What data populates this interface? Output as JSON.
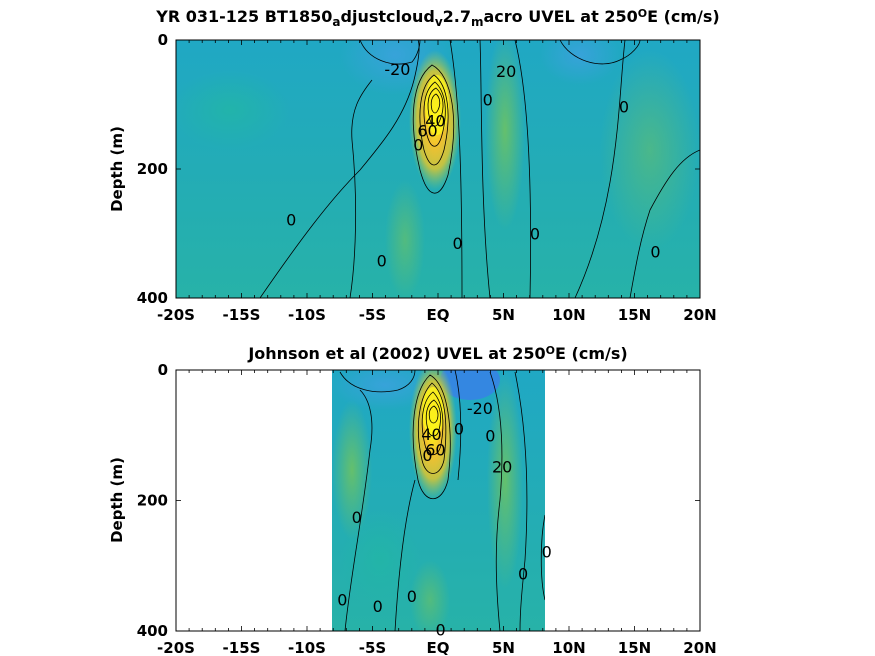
{
  "chart_data": [
    {
      "type": "heatmap",
      "title_parts": [
        "YR 031-125 BT1850",
        "a",
        "djustcloud",
        "v",
        "2.7",
        "m",
        "acro UVEL at 250",
        "O",
        "E (cm/s)"
      ],
      "ylabel": "Depth (m)",
      "xlim": [
        -20,
        20
      ],
      "ylim": [
        400,
        0
      ],
      "x_ticks": [
        -20,
        -15,
        -10,
        -5,
        0,
        5,
        10,
        15,
        20
      ],
      "x_tick_labels": [
        "-20S",
        "-15S",
        "-10S",
        "-5S",
        "EQ",
        "5N",
        "10N",
        "15N",
        "20N"
      ],
      "y_ticks": [
        0,
        200,
        400
      ],
      "y_tick_labels": [
        "0",
        "200",
        "400"
      ],
      "data_extent": [
        -20,
        20
      ],
      "contour_labels": [
        {
          "text": "-20",
          "x": -3.1,
          "y": 45
        },
        {
          "text": "20",
          "x": 5.2,
          "y": 48
        },
        {
          "text": "0",
          "x": 3.8,
          "y": 92
        },
        {
          "text": "0",
          "x": 14.2,
          "y": 103
        },
        {
          "text": "40",
          "x": -0.2,
          "y": 125
        },
        {
          "text": "60",
          "x": -0.8,
          "y": 140
        },
        {
          "text": "0",
          "x": -1.5,
          "y": 162
        },
        {
          "text": "0",
          "x": -11.2,
          "y": 278
        },
        {
          "text": "0",
          "x": 1.5,
          "y": 315
        },
        {
          "text": "0",
          "x": 7.4,
          "y": 300
        },
        {
          "text": "0",
          "x": -4.3,
          "y": 342
        },
        {
          "text": "0",
          "x": 16.6,
          "y": 328
        }
      ]
    },
    {
      "type": "heatmap",
      "title_parts": [
        "Johnson et al (2002) UVEL at 250",
        "O",
        "E (cm/s)"
      ],
      "ylabel": "Depth (m)",
      "xlim": [
        -20,
        20
      ],
      "ylim": [
        400,
        0
      ],
      "x_ticks": [
        -20,
        -15,
        -10,
        -5,
        0,
        5,
        10,
        15,
        20
      ],
      "x_tick_labels": [
        "-20S",
        "-15S",
        "-10S",
        "-5S",
        "EQ",
        "5N",
        "10N",
        "15N",
        "20N"
      ],
      "y_ticks": [
        0,
        200,
        400
      ],
      "y_tick_labels": [
        "0",
        "200",
        "400"
      ],
      "data_extent": [
        -8,
        8.2
      ],
      "contour_labels": [
        {
          "text": "-20",
          "x": 3.2,
          "y": 58
        },
        {
          "text": "0",
          "x": 1.6,
          "y": 90
        },
        {
          "text": "0",
          "x": 4.0,
          "y": 100
        },
        {
          "text": "20",
          "x": 4.9,
          "y": 148
        },
        {
          "text": "40",
          "x": -0.5,
          "y": 98
        },
        {
          "text": "60",
          "x": -0.2,
          "y": 122
        },
        {
          "text": "0",
          "x": -0.8,
          "y": 130
        },
        {
          "text": "0",
          "x": -6.2,
          "y": 225
        },
        {
          "text": "0",
          "x": 8.3,
          "y": 278
        },
        {
          "text": "0",
          "x": 6.5,
          "y": 312
        },
        {
          "text": "0",
          "x": -7.3,
          "y": 352
        },
        {
          "text": "0",
          "x": -4.6,
          "y": 362
        },
        {
          "text": "0",
          "x": -2.0,
          "y": 346
        },
        {
          "text": "0",
          "x": 0.2,
          "y": 398
        }
      ]
    }
  ]
}
